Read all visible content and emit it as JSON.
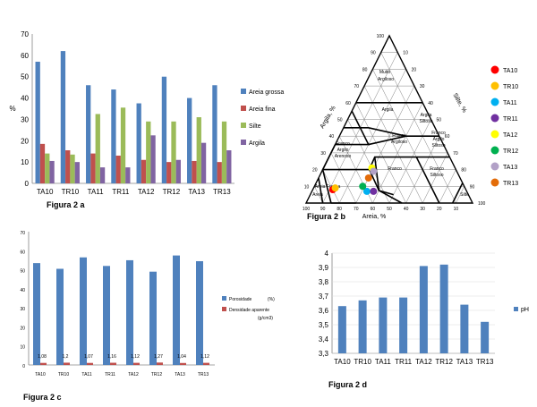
{
  "chart_data": [
    {
      "type": "bar",
      "caption": "Figura 2 a",
      "ylabel": "%",
      "ylim": [
        0,
        70
      ],
      "yticks": [
        "0",
        "10",
        "20",
        "30",
        "40",
        "50",
        "60",
        "70"
      ],
      "categories": [
        "TA10",
        "TR10",
        "TA11",
        "TR11",
        "TA12",
        "TR12",
        "TA13",
        "TR13"
      ],
      "series": [
        {
          "name": "Areia grossa",
          "color": "#4f81bd",
          "values": [
            57,
            62,
            46,
            44,
            37.5,
            50,
            40,
            46
          ]
        },
        {
          "name": "Areia fina",
          "color": "#c0504d",
          "values": [
            18.5,
            15.5,
            14,
            13,
            11,
            10,
            10.5,
            10
          ]
        },
        {
          "name": "Silte",
          "color": "#9bbb59",
          "values": [
            14,
            13.5,
            32.5,
            35.5,
            29,
            29,
            31,
            29
          ]
        },
        {
          "name": "Argila",
          "color": "#8064a2",
          "values": [
            10.5,
            10,
            7.5,
            7.5,
            22.5,
            11,
            19,
            15.5
          ]
        }
      ],
      "legend_position": "right"
    },
    {
      "type": "scatter",
      "subtype": "ternary",
      "caption": "Figura 2 b",
      "axis_labels": {
        "left": "Argila, %",
        "right": "Silte, %",
        "bottom": "Areia, %"
      },
      "ticks": [
        "10",
        "20",
        "30",
        "40",
        "50",
        "60",
        "70",
        "80",
        "90",
        "100"
      ],
      "bottom_ticks": [
        "100",
        "90",
        "80",
        "70",
        "60",
        "50",
        "40",
        "30",
        "20",
        "10"
      ],
      "classes": [
        "Muito Argiloso",
        "Argila",
        "Argila Siltosa",
        "Franco Argilo Siltoso",
        "Franco Argiloso",
        "Franco Argilo Arenoso",
        "Franco",
        "Franco Siltoso",
        "Areia Franca",
        "Areia",
        "Silte"
      ],
      "points": [
        {
          "name": "TA10",
          "color": "#ff0000",
          "sand": 80,
          "silt": 12,
          "clay": 8
        },
        {
          "name": "TR10",
          "color": "#ffc000",
          "sand": 78,
          "silt": 13,
          "clay": 9
        },
        {
          "name": "TA11",
          "color": "#00b0f0",
          "sand": 60,
          "silt": 33,
          "clay": 7
        },
        {
          "name": "TR11",
          "color": "#7030a0",
          "sand": 56,
          "silt": 37,
          "clay": 7
        },
        {
          "name": "TA12",
          "color": "#ffff00",
          "sand": 50,
          "silt": 29,
          "clay": 21
        },
        {
          "name": "TR12",
          "color": "#00b050",
          "sand": 61,
          "silt": 29,
          "clay": 10
        },
        {
          "name": "TA13",
          "color": "#b2a1c7",
          "sand": 50,
          "silt": 31,
          "clay": 19
        },
        {
          "name": "TR13",
          "color": "#e36c09",
          "sand": 55,
          "silt": 30,
          "clay": 15
        }
      ]
    },
    {
      "type": "bar",
      "caption": "Figura 2 c",
      "ylim": [
        0,
        70
      ],
      "yticks": [
        "0",
        "10",
        "20",
        "30",
        "40",
        "50",
        "60",
        "70"
      ],
      "categories": [
        "TA10",
        "TR10",
        "TA11",
        "TR11",
        "TA12",
        "TR12",
        "TA13",
        "TR13"
      ],
      "series": [
        {
          "name": "Porosidade",
          "unit": "(%)",
          "color": "#4f81bd",
          "values": [
            53.5,
            50.5,
            56.5,
            52,
            55,
            49,
            57.5,
            54.5
          ]
        },
        {
          "name": "Densidade aparente",
          "unit": "(g/cm3)",
          "color": "#c0504d",
          "values": [
            1.08,
            1.2,
            1.07,
            1.16,
            1.12,
            1.27,
            1.04,
            1.12
          ]
        }
      ],
      "data_labels": [
        "1,08",
        "1,2",
        "1,07",
        "1,16",
        "1,12",
        "1,27",
        "1,04",
        "1,12"
      ],
      "legend_position": "right"
    },
    {
      "type": "bar",
      "caption": "Figura 2 d",
      "ylim": [
        3.3,
        4.0
      ],
      "yticks": [
        "3,3",
        "3,4",
        "3,5",
        "3,6",
        "3,7",
        "3,8",
        "3,9",
        "4"
      ],
      "categories": [
        "TA10",
        "TR10",
        "TA11",
        "TR11",
        "TA12",
        "TR12",
        "TA13",
        "TR13"
      ],
      "series": [
        {
          "name": "pH",
          "color": "#4f81bd",
          "values": [
            3.63,
            3.67,
            3.69,
            3.69,
            3.91,
            3.92,
            3.64,
            3.52
          ]
        }
      ],
      "legend_position": "right"
    }
  ]
}
